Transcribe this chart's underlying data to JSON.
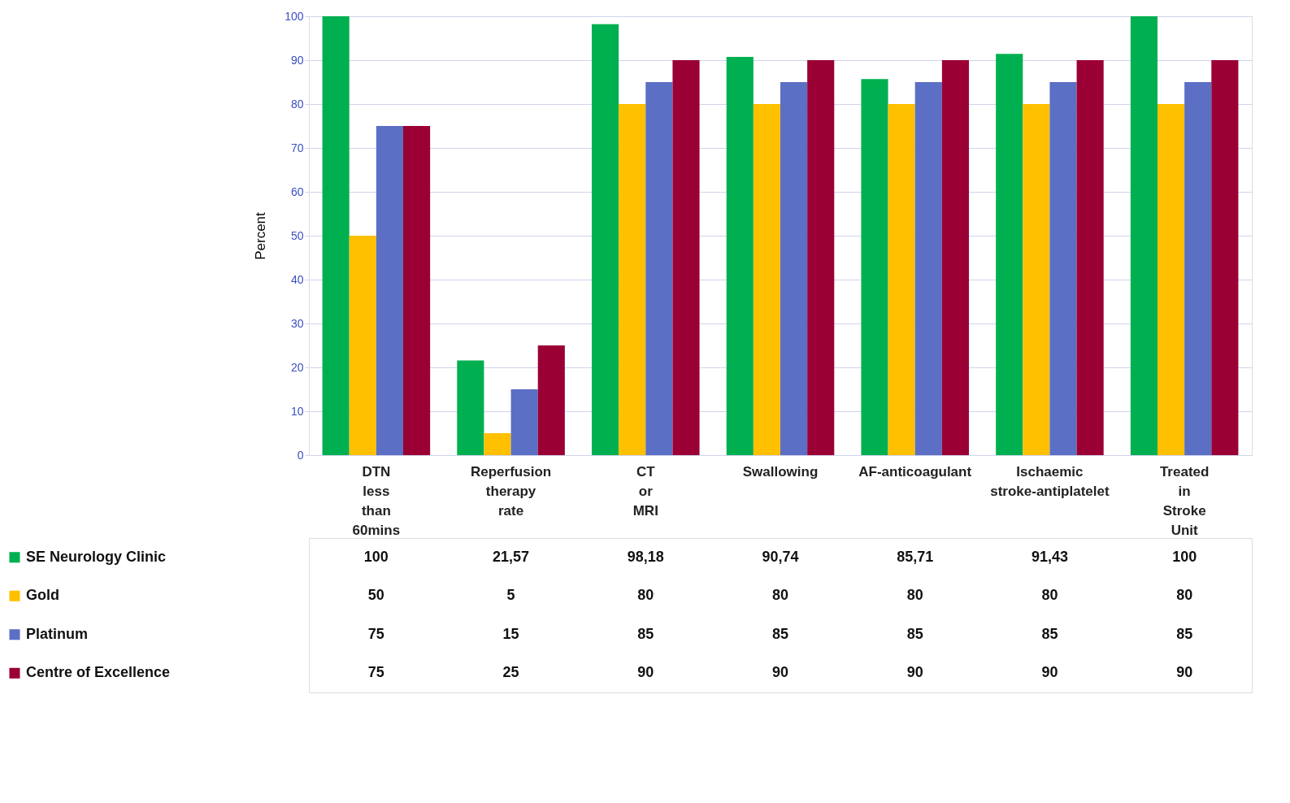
{
  "chart_data": {
    "type": "bar",
    "ylabel": "Percent",
    "categories": [
      "DTN less than 60mins",
      "Reperfusion therapy rate",
      "CT or MRI",
      "Swallowing",
      "AF-anticoagulant",
      "Ischaemic stroke-antiplatelet",
      "Treated in Stroke Unit"
    ],
    "series": [
      {
        "name": "SE Neurology Clinic",
        "color": "#00b050",
        "values": [
          100,
          21.57,
          98.18,
          90.74,
          85.71,
          91.43,
          100
        ],
        "value_labels": [
          "100",
          "21,57",
          "98,18",
          "90,74",
          "85,71",
          "91,43",
          "100"
        ]
      },
      {
        "name": "Gold",
        "color": "#ffc000",
        "values": [
          50,
          5,
          80,
          80,
          80,
          80,
          80
        ],
        "value_labels": [
          "50",
          "5",
          "80",
          "80",
          "80",
          "80",
          "80"
        ]
      },
      {
        "name": "Platinum",
        "color": "#5b6fc4",
        "values": [
          75,
          15,
          85,
          85,
          85,
          85,
          85
        ],
        "value_labels": [
          "75",
          "15",
          "85",
          "85",
          "85",
          "85",
          "85"
        ]
      },
      {
        "name": "Centre of Excellence",
        "color": "#9b0034",
        "values": [
          75,
          25,
          90,
          90,
          90,
          90,
          90
        ],
        "value_labels": [
          "75",
          "25",
          "90",
          "90",
          "90",
          "90",
          "90"
        ]
      }
    ],
    "ylim": [
      0,
      100
    ],
    "yticks": [
      0,
      10,
      20,
      30,
      40,
      50,
      60,
      70,
      80,
      90,
      100
    ],
    "grid": "y",
    "legend": "left"
  }
}
